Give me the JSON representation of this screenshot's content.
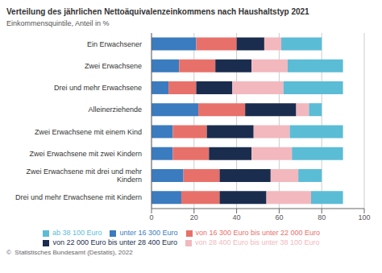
{
  "chart_data": {
    "type": "bar",
    "orientation": "horizontal",
    "stacked": true,
    "title": "Verteilung des jährlichen Nettoäquivalenzeinkommens nach Haushaltstyp 2021",
    "subtitle": "Einkommensquintile, Anteil in %",
    "annotations": [
      "©  Statistisches Bundesamt (Destatis), 2022"
    ],
    "categories": [
      "Ein Erwachsener",
      "Zwei Erwachsene",
      "Drei und mehr Erwachsene",
      "Alleinerziehende",
      "Zwei Erwachsene mit einem Kind",
      "Zwei Erwachsene mit zwei Kindern",
      "Zwei Erwachsene mit drei und mehr\nKindern",
      "Drei und mehr Erwachsene mit Kindern"
    ],
    "series": [
      {
        "name": "unter 16 300 Euro",
        "color": "#3b7bbf",
        "values": [
          21,
          13,
          8,
          22,
          10,
          10,
          15,
          14
        ]
      },
      {
        "name": "von 16 300 Euro bis unter 22 000 Euro",
        "color": "#e8706a",
        "values": [
          19,
          17,
          13,
          22,
          16,
          17,
          17,
          18
        ]
      },
      {
        "name": "von 22 000 Euro bis unter 28 400 Euro",
        "color": "#1b2d4e",
        "values": [
          13,
          17,
          17,
          24,
          22,
          20,
          24,
          22
        ]
      },
      {
        "name": "von 28 400 Euro bis unter 38 100 Euro",
        "color": "#f2b8be",
        "values": [
          8,
          17,
          24,
          6,
          17,
          19,
          13,
          21
        ]
      },
      {
        "name": "ab 38 100 Euro",
        "color": "#5bbcd6",
        "values": [
          19,
          26,
          28,
          6,
          25,
          24,
          11,
          15
        ]
      }
    ],
    "xlim": [
      0,
      100
    ],
    "xticks": [
      0,
      20,
      40,
      60,
      80,
      100
    ],
    "grid": true,
    "legend": "bottom"
  }
}
